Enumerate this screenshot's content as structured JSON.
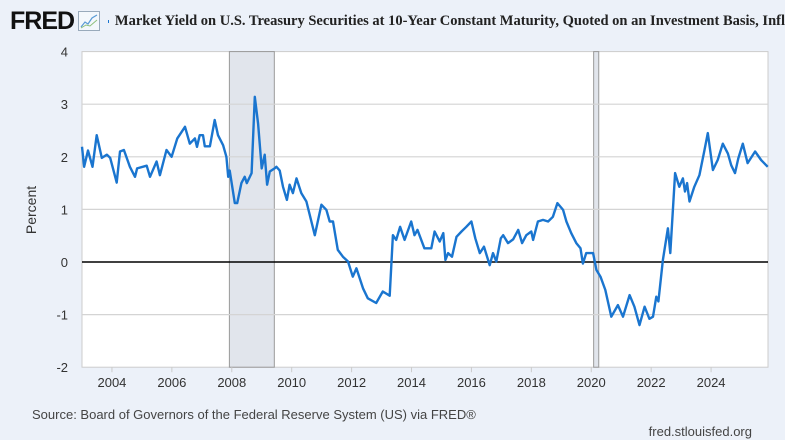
{
  "header": {
    "logo": "FRED",
    "logo_icon": "line-chart-icon",
    "title": "Market Yield on U.S. Treasury Securities at 10-Year Constant Maturity, Quoted on an Investment Basis, Infl"
  },
  "footer": {
    "source": "Source: Board of Governors of the Federal Reserve System (US) via FRED®",
    "site": "fred.stlouisfed.org"
  },
  "colors": {
    "series": "#1a75cf",
    "recession": "#e1e5ec",
    "background": "#ecf1f9"
  },
  "chart_data": {
    "type": "line",
    "title": "Market Yield on U.S. Treasury Securities at 10-Year Constant Maturity, Quoted on an Investment Basis, Infl",
    "ylabel": "Percent",
    "xlabel": "",
    "xlim": [
      2003.0,
      2025.9
    ],
    "ylim": [
      -2,
      4
    ],
    "yticks": [
      4,
      3,
      2,
      1,
      0,
      -1,
      -2
    ],
    "xticks": [
      2004,
      2006,
      2008,
      2010,
      2012,
      2014,
      2016,
      2018,
      2020,
      2022,
      2024
    ],
    "grid": true,
    "legend": "top",
    "recessions": [
      [
        2007.92,
        2009.42
      ],
      [
        2020.08,
        2020.25
      ]
    ],
    "series": [
      {
        "name": "Market Yield on U.S. Treasury Securities at 10-Year Constant Maturity, Quoted on an Investment Basis, Infl",
        "points": [
          [
            2003.0,
            2.19
          ],
          [
            2003.07,
            1.81
          ],
          [
            2003.2,
            2.12
          ],
          [
            2003.35,
            1.81
          ],
          [
            2003.49,
            2.41
          ],
          [
            2003.66,
            1.98
          ],
          [
            2003.83,
            2.04
          ],
          [
            2003.94,
            1.98
          ],
          [
            2004.16,
            1.51
          ],
          [
            2004.27,
            2.1
          ],
          [
            2004.4,
            2.13
          ],
          [
            2004.6,
            1.81
          ],
          [
            2004.77,
            1.62
          ],
          [
            2004.84,
            1.78
          ],
          [
            2005.16,
            1.83
          ],
          [
            2005.27,
            1.62
          ],
          [
            2005.49,
            1.91
          ],
          [
            2005.6,
            1.65
          ],
          [
            2005.82,
            2.13
          ],
          [
            2005.99,
            2.0
          ],
          [
            2006.18,
            2.35
          ],
          [
            2006.44,
            2.57
          ],
          [
            2006.6,
            2.25
          ],
          [
            2006.77,
            2.35
          ],
          [
            2006.84,
            2.19
          ],
          [
            2006.93,
            2.41
          ],
          [
            2007.04,
            2.41
          ],
          [
            2007.1,
            2.2
          ],
          [
            2007.27,
            2.2
          ],
          [
            2007.43,
            2.7
          ],
          [
            2007.54,
            2.41
          ],
          [
            2007.71,
            2.22
          ],
          [
            2007.82,
            2.0
          ],
          [
            2007.88,
            1.62
          ],
          [
            2007.93,
            1.74
          ],
          [
            2008.1,
            1.12
          ],
          [
            2008.18,
            1.12
          ],
          [
            2008.32,
            1.5
          ],
          [
            2008.43,
            1.62
          ],
          [
            2008.5,
            1.5
          ],
          [
            2008.66,
            1.69
          ],
          [
            2008.77,
            3.14
          ],
          [
            2008.88,
            2.63
          ],
          [
            2009.0,
            1.78
          ],
          [
            2009.1,
            2.04
          ],
          [
            2009.18,
            1.47
          ],
          [
            2009.27,
            1.72
          ],
          [
            2009.43,
            1.78
          ],
          [
            2009.49,
            1.81
          ],
          [
            2009.6,
            1.74
          ],
          [
            2009.71,
            1.43
          ],
          [
            2009.84,
            1.18
          ],
          [
            2009.93,
            1.47
          ],
          [
            2010.04,
            1.31
          ],
          [
            2010.16,
            1.59
          ],
          [
            2010.32,
            1.31
          ],
          [
            2010.49,
            1.15
          ],
          [
            2010.77,
            0.51
          ],
          [
            2010.99,
            1.09
          ],
          [
            2011.16,
            0.99
          ],
          [
            2011.27,
            0.77
          ],
          [
            2011.38,
            0.77
          ],
          [
            2011.54,
            0.23
          ],
          [
            2011.71,
            0.1
          ],
          [
            2011.88,
            0.01
          ],
          [
            2012.04,
            -0.28
          ],
          [
            2012.16,
            -0.12
          ],
          [
            2012.38,
            -0.5
          ],
          [
            2012.54,
            -0.69
          ],
          [
            2012.82,
            -0.78
          ],
          [
            2013.04,
            -0.56
          ],
          [
            2013.27,
            -0.64
          ],
          [
            2013.38,
            0.51
          ],
          [
            2013.49,
            0.42
          ],
          [
            2013.62,
            0.67
          ],
          [
            2013.77,
            0.42
          ],
          [
            2013.99,
            0.77
          ],
          [
            2014.1,
            0.51
          ],
          [
            2014.2,
            0.61
          ],
          [
            2014.43,
            0.26
          ],
          [
            2014.66,
            0.26
          ],
          [
            2014.77,
            0.58
          ],
          [
            2014.94,
            0.39
          ],
          [
            2015.06,
            0.55
          ],
          [
            2015.13,
            0.04
          ],
          [
            2015.22,
            0.17
          ],
          [
            2015.35,
            0.1
          ],
          [
            2015.5,
            0.48
          ],
          [
            2015.67,
            0.58
          ],
          [
            2015.83,
            0.67
          ],
          [
            2016.0,
            0.77
          ],
          [
            2016.13,
            0.45
          ],
          [
            2016.28,
            0.17
          ],
          [
            2016.42,
            0.29
          ],
          [
            2016.61,
            -0.06
          ],
          [
            2016.72,
            0.17
          ],
          [
            2016.83,
            0.01
          ],
          [
            2016.98,
            0.45
          ],
          [
            2017.06,
            0.51
          ],
          [
            2017.22,
            0.36
          ],
          [
            2017.39,
            0.43
          ],
          [
            2017.56,
            0.61
          ],
          [
            2017.69,
            0.36
          ],
          [
            2017.83,
            0.51
          ],
          [
            2018.0,
            0.58
          ],
          [
            2018.06,
            0.42
          ],
          [
            2018.22,
            0.77
          ],
          [
            2018.39,
            0.8
          ],
          [
            2018.56,
            0.77
          ],
          [
            2018.72,
            0.86
          ],
          [
            2018.87,
            1.12
          ],
          [
            2019.06,
            0.99
          ],
          [
            2019.17,
            0.77
          ],
          [
            2019.33,
            0.55
          ],
          [
            2019.5,
            0.36
          ],
          [
            2019.64,
            0.26
          ],
          [
            2019.72,
            -0.03
          ],
          [
            2019.83,
            0.17
          ],
          [
            2020.06,
            0.17
          ],
          [
            2020.17,
            -0.15
          ],
          [
            2020.31,
            -0.28
          ],
          [
            2020.47,
            -0.53
          ],
          [
            2020.67,
            -1.04
          ],
          [
            2020.89,
            -0.82
          ],
          [
            2021.06,
            -1.04
          ],
          [
            2021.28,
            -0.63
          ],
          [
            2021.44,
            -0.85
          ],
          [
            2021.61,
            -1.2
          ],
          [
            2021.78,
            -0.85
          ],
          [
            2021.94,
            -1.08
          ],
          [
            2022.06,
            -1.04
          ],
          [
            2022.17,
            -0.66
          ],
          [
            2022.24,
            -0.75
          ],
          [
            2022.39,
            0.04
          ],
          [
            2022.56,
            0.64
          ],
          [
            2022.64,
            0.17
          ],
          [
            2022.8,
            1.69
          ],
          [
            2022.94,
            1.43
          ],
          [
            2023.06,
            1.59
          ],
          [
            2023.13,
            1.34
          ],
          [
            2023.2,
            1.5
          ],
          [
            2023.28,
            1.15
          ],
          [
            2023.44,
            1.43
          ],
          [
            2023.61,
            1.65
          ],
          [
            2023.78,
            2.13
          ],
          [
            2023.89,
            2.45
          ],
          [
            2024.06,
            1.75
          ],
          [
            2024.22,
            1.94
          ],
          [
            2024.39,
            2.25
          ],
          [
            2024.56,
            2.06
          ],
          [
            2024.67,
            1.84
          ],
          [
            2024.8,
            1.69
          ],
          [
            2024.91,
            1.97
          ],
          [
            2025.06,
            2.25
          ],
          [
            2025.22,
            1.88
          ],
          [
            2025.47,
            2.1
          ],
          [
            2025.67,
            1.94
          ],
          [
            2025.89,
            1.81
          ]
        ]
      }
    ]
  }
}
